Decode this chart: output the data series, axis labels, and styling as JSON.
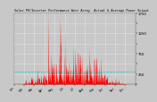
{
  "title": "Solar PV/Inverter Performance West Array  Actual & Average Power Output",
  "bg_color": "#c8c8c8",
  "plot_bg_color": "#c8c8c8",
  "grid_color": "#ffffff",
  "bar_color": "#ff0000",
  "avg_line_color": "#00cccc",
  "ymax": 1750,
  "ymin": 0,
  "ytick_labels": [
    "",
    "250",
    "",
    "750",
    "",
    "1250",
    "",
    "1750"
  ],
  "yticks": [
    0,
    250,
    500,
    750,
    1000,
    1250,
    1500,
    1750
  ],
  "num_points": 365,
  "avg_value": 300,
  "seed": 42
}
